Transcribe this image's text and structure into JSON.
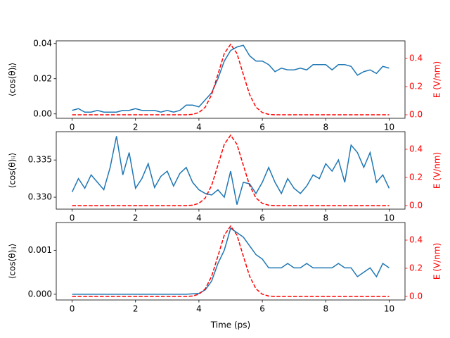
{
  "chart_data": [
    {
      "type": "line",
      "ylabel": "⟨cos(θ)ⱼ⟩",
      "y2label": "E (V/nm)",
      "x": [
        0,
        0.2,
        0.4,
        0.6,
        0.8,
        1,
        1.2,
        1.4,
        1.6,
        1.8,
        2,
        2.2,
        2.4,
        2.6,
        2.8,
        3,
        3.2,
        3.4,
        3.6,
        3.8,
        4,
        4.2,
        4.4,
        4.6,
        4.8,
        5,
        5.2,
        5.4,
        5.6,
        5.8,
        6,
        6.2,
        6.4,
        6.6,
        6.8,
        7,
        7.2,
        7.4,
        7.6,
        7.8,
        8,
        8.2,
        8.4,
        8.6,
        8.8,
        9,
        9.2,
        9.4,
        9.6,
        9.8,
        10
      ],
      "series": [
        {
          "color": "#1f77b4",
          "values": [
            0.002,
            0.003,
            0.001,
            0.001,
            0.002,
            0.001,
            0.001,
            0.001,
            0.002,
            0.002,
            0.003,
            0.002,
            0.002,
            0.002,
            0.001,
            0.002,
            0.001,
            0.002,
            0.005,
            0.005,
            0.004,
            0.008,
            0.012,
            0.02,
            0.03,
            0.036,
            0.038,
            0.039,
            0.033,
            0.03,
            0.03,
            0.028,
            0.024,
            0.026,
            0.025,
            0.025,
            0.026,
            0.025,
            0.028,
            0.028,
            0.028,
            0.025,
            0.028,
            0.028,
            0.027,
            0.022,
            0.024,
            0.025,
            0.023,
            0.027,
            0.026
          ]
        },
        {
          "color": "#ff0000",
          "linestyle": "dashed",
          "axis": "y2",
          "values": [
            0,
            0,
            0,
            0,
            0,
            0,
            0,
            0,
            0,
            0,
            0,
            0,
            0,
            0,
            0,
            0,
            0,
            0,
            0,
            0.003,
            0.016,
            0.054,
            0.143,
            0.287,
            0.435,
            0.5,
            0.435,
            0.287,
            0.143,
            0.054,
            0.016,
            0.003,
            0,
            0,
            0,
            0,
            0,
            0,
            0,
            0,
            0,
            0,
            0,
            0,
            0,
            0,
            0,
            0,
            0,
            0,
            0
          ]
        }
      ],
      "xlim": [
        -0.5,
        10.5
      ],
      "xticks": [
        0,
        2,
        4,
        6,
        8,
        10
      ],
      "ylim": [
        -0.0025,
        0.0415
      ],
      "yticks": [
        {
          "value": 0,
          "label": "0.00"
        },
        {
          "value": 0.02,
          "label": "0.02"
        },
        {
          "value": 0.04,
          "label": "0.04"
        }
      ],
      "y2lim": [
        -0.025,
        0.525
      ],
      "y2ticks": [
        {
          "value": 0,
          "label": "0.0"
        },
        {
          "value": 0.2,
          "label": "0.2"
        },
        {
          "value": 0.4,
          "label": "0.4"
        }
      ]
    },
    {
      "type": "line",
      "ylabel": "⟨cos(θ)ᵢᵢ⟩",
      "y2label": "E (V/nm)",
      "x": [
        0,
        0.2,
        0.4,
        0.6,
        0.8,
        1,
        1.2,
        1.4,
        1.6,
        1.8,
        2,
        2.2,
        2.4,
        2.6,
        2.8,
        3,
        3.2,
        3.4,
        3.6,
        3.8,
        4,
        4.2,
        4.4,
        4.6,
        4.8,
        5,
        5.2,
        5.4,
        5.6,
        5.8,
        6,
        6.2,
        6.4,
        6.6,
        6.8,
        7,
        7.2,
        7.4,
        7.6,
        7.8,
        8,
        8.2,
        8.4,
        8.6,
        8.8,
        9,
        9.2,
        9.4,
        9.6,
        9.8,
        10
      ],
      "series": [
        {
          "color": "#1f77b4",
          "values": [
            0.3307,
            0.3325,
            0.3312,
            0.333,
            0.332,
            0.331,
            0.334,
            0.3382,
            0.333,
            0.336,
            0.3312,
            0.3325,
            0.3345,
            0.3313,
            0.3328,
            0.3335,
            0.3315,
            0.3332,
            0.334,
            0.332,
            0.331,
            0.3305,
            0.3303,
            0.331,
            0.33,
            0.3335,
            0.329,
            0.332,
            0.3318,
            0.3305,
            0.332,
            0.334,
            0.332,
            0.3305,
            0.3325,
            0.3312,
            0.3305,
            0.3315,
            0.333,
            0.3325,
            0.3345,
            0.3335,
            0.335,
            0.332,
            0.337,
            0.336,
            0.334,
            0.336,
            0.332,
            0.333,
            0.3312
          ]
        },
        {
          "color": "#ff0000",
          "linestyle": "dashed",
          "axis": "y2",
          "values": [
            0,
            0,
            0,
            0,
            0,
            0,
            0,
            0,
            0,
            0,
            0,
            0,
            0,
            0,
            0,
            0,
            0,
            0,
            0,
            0.003,
            0.016,
            0.054,
            0.143,
            0.287,
            0.435,
            0.5,
            0.435,
            0.287,
            0.143,
            0.054,
            0.016,
            0.003,
            0,
            0,
            0,
            0,
            0,
            0,
            0,
            0,
            0,
            0,
            0,
            0,
            0,
            0,
            0,
            0,
            0,
            0,
            0
          ]
        }
      ],
      "xlim": [
        -0.5,
        10.5
      ],
      "xticks": [
        0,
        2,
        4,
        6,
        8,
        10
      ],
      "ylim": [
        0.3284,
        0.3388
      ],
      "yticks": [
        {
          "value": 0.33,
          "label": "0.330"
        },
        0.335
      ],
      "y2lim": [
        -0.025,
        0.525
      ],
      "y2ticks": [
        {
          "value": 0,
          "label": "0.0"
        },
        {
          "value": 0.2,
          "label": "0.2"
        },
        {
          "value": 0.4,
          "label": "0.4"
        }
      ]
    },
    {
      "type": "line",
      "ylabel": "⟨cos(θ)ᵢⱼ⟩",
      "y2label": "E (V/nm)",
      "xlabel": "Time (ps)",
      "x": [
        0,
        0.2,
        0.4,
        0.6,
        0.8,
        1,
        1.2,
        1.4,
        1.6,
        1.8,
        2,
        2.2,
        2.4,
        2.6,
        2.8,
        3,
        3.2,
        3.4,
        3.6,
        3.8,
        4,
        4.2,
        4.4,
        4.6,
        4.8,
        5,
        5.2,
        5.4,
        5.6,
        5.8,
        6,
        6.2,
        6.4,
        6.6,
        6.8,
        7,
        7.2,
        7.4,
        7.6,
        7.8,
        8,
        8.2,
        8.4,
        8.6,
        8.8,
        9,
        9.2,
        9.4,
        9.6,
        9.8,
        10
      ],
      "series": [
        {
          "color": "#1f77b4",
          "values": [
            0,
            0,
            0,
            0,
            0,
            0,
            0,
            0,
            0,
            0,
            0,
            0,
            0,
            0,
            0,
            0,
            0,
            0,
            0,
            1e-05,
            2e-05,
            0.0001,
            0.0003,
            0.0007,
            0.001,
            0.0015,
            0.0014,
            0.0013,
            0.0011,
            0.0009,
            0.0008,
            0.0006,
            0.0006,
            0.0006,
            0.0007,
            0.0006,
            0.0006,
            0.0007,
            0.0006,
            0.0006,
            0.0006,
            0.0006,
            0.0007,
            0.0006,
            0.0006,
            0.0004,
            0.0005,
            0.0006,
            0.0004,
            0.0007,
            0.0006
          ]
        },
        {
          "color": "#ff0000",
          "linestyle": "dashed",
          "axis": "y2",
          "values": [
            0,
            0,
            0,
            0,
            0,
            0,
            0,
            0,
            0,
            0,
            0,
            0,
            0,
            0,
            0,
            0,
            0,
            0,
            0,
            0.003,
            0.016,
            0.054,
            0.143,
            0.287,
            0.435,
            0.5,
            0.435,
            0.287,
            0.143,
            0.054,
            0.016,
            0.003,
            0,
            0,
            0,
            0,
            0,
            0,
            0,
            0,
            0,
            0,
            0,
            0,
            0,
            0,
            0,
            0,
            0,
            0,
            0
          ]
        }
      ],
      "xlim": [
        -0.5,
        10.5
      ],
      "xticks": [
        0,
        2,
        4,
        6,
        8,
        10
      ],
      "ylim": [
        -0.00013,
        0.00163
      ],
      "yticks": [
        {
          "value": 0,
          "label": "0.000"
        },
        {
          "value": 0.001,
          "label": "0.001"
        }
      ],
      "y2lim": [
        -0.025,
        0.525
      ],
      "y2ticks": [
        {
          "value": 0,
          "label": "0.0"
        },
        {
          "value": 0.2,
          "label": "0.2"
        },
        {
          "value": 0.4,
          "label": "0.4"
        }
      ]
    }
  ]
}
